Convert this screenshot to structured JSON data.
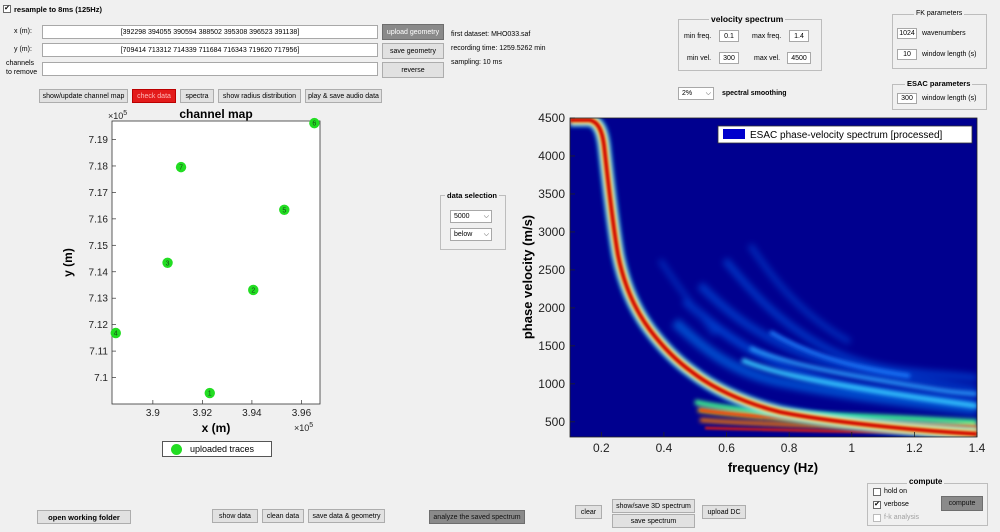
{
  "resample": {
    "label": "resample to 8ms (125Hz)",
    "checked": true
  },
  "geometry": {
    "x_label": "x (m):",
    "x_value": "[392298  394055  390594  388502  395308  396523  391138]",
    "y_label": "y (m):",
    "y_value": "[709414  713312  714339  711684  716343  719620  717956]",
    "channels_label_1": "channels",
    "channels_label_2": "to remove",
    "channels_value": ""
  },
  "geometry_buttons": {
    "upload": "upload geometry",
    "save": "save geometry",
    "reverse": "reverse"
  },
  "dataset_info": {
    "first_dataset": "first dataset: MHO033.saf",
    "recording_time": "recording time: 1259.5262 min",
    "sampling": "sampling: 10 ms"
  },
  "toolbar": {
    "show_map": "show/update channel map",
    "check_data": "check data",
    "spectra": "spectra",
    "radius": "show radius distribution",
    "audio": "play & save audio data"
  },
  "velocity_spectrum": {
    "title": "velocity spectrum",
    "min_freq_label": "min freq.",
    "min_freq": "0.1",
    "max_freq_label": "max freq.",
    "max_freq": "1.4",
    "min_vel_label": "min vel.",
    "min_vel": "300",
    "max_vel_label": "max vel.",
    "max_vel": "4500"
  },
  "smoothing": {
    "value": "2%",
    "label": "spectral smoothing"
  },
  "fk_parameters": {
    "title": "FK parameters",
    "wavenumbers": "1024",
    "wavenumbers_label": "wavenumbers",
    "window_length": "10",
    "window_length_label": "window length (s)"
  },
  "esac_parameters": {
    "title": "ESAC parameters",
    "window_length": "300",
    "window_length_label": "window length (s)"
  },
  "data_selection": {
    "title": "data selection",
    "value": "5000",
    "mode": "below"
  },
  "bottom_buttons": {
    "open_folder": "open working folder",
    "show_data": "show data",
    "clean_data": "clean data",
    "save_data_geometry": "save data & geometry",
    "analyze_saved": "analyze the saved spectrum",
    "clear": "clear",
    "show_save_3d": "show/save 3D spectrum",
    "save_spectrum": "save spectrum",
    "upload_dc": "upload DC"
  },
  "compute_panel": {
    "title": "compute",
    "hold_on": "hold on",
    "hold_on_checked": false,
    "verbose": "verbose",
    "verbose_checked": true,
    "fk_analysis": "f-k analysis",
    "fk_analysis_checked": false,
    "compute_button": "compute"
  },
  "channel_map": {
    "title": "channel map",
    "xlabel": "x (m)",
    "ylabel": "y (m)",
    "x_exponent_base": "×10",
    "x_exponent_power": "5",
    "y_exponent_base": "×10",
    "y_exponent_power": "5",
    "x_ticks": [
      "3.9",
      "3.92",
      "3.94",
      "3.96"
    ],
    "y_ticks": [
      "7.1",
      "7.11",
      "7.12",
      "7.13",
      "7.14",
      "7.15",
      "7.16",
      "7.17",
      "7.18",
      "7.19"
    ],
    "legend": "uploaded traces",
    "marker_color": "#22dd22"
  },
  "chart_data": [
    {
      "type": "scatter",
      "title": "channel map",
      "xlabel": "x (m)",
      "ylabel": "y (m)",
      "xlim": [
        388350,
        396750
      ],
      "ylim": [
        709000,
        719700
      ],
      "points": [
        {
          "label": "1",
          "x": 392298,
          "y": 709414
        },
        {
          "label": "2",
          "x": 394055,
          "y": 713312
        },
        {
          "label": "3",
          "x": 390594,
          "y": 714339
        },
        {
          "label": "4",
          "x": 388502,
          "y": 711684
        },
        {
          "label": "5",
          "x": 395308,
          "y": 716343
        },
        {
          "label": "6",
          "x": 396523,
          "y": 719620
        },
        {
          "label": "7",
          "x": 391138,
          "y": 717956
        }
      ],
      "legend": [
        "uploaded traces"
      ],
      "legend_position": "bottom-center"
    },
    {
      "type": "heatmap",
      "title": "",
      "xlabel": "frequency (Hz)",
      "ylabel": "phase velocity (m/s)",
      "xlim": [
        0.1,
        1.4
      ],
      "ylim": [
        300,
        4500
      ],
      "x_ticks": [
        "0.2",
        "0.4",
        "0.6",
        "0.8",
        "1",
        "1.2",
        "1.4"
      ],
      "y_ticks": [
        "500",
        "1000",
        "1500",
        "2000",
        "2500",
        "3000",
        "3500",
        "4000",
        "4500"
      ],
      "legend": [
        "ESAC phase-velocity spectrum [processed]"
      ],
      "legend_position": "top-right",
      "colormap": "jet",
      "fundamental_mode_ridge": [
        {
          "x": 0.1,
          "y": 4480
        },
        {
          "x": 0.15,
          "y": 4420
        },
        {
          "x": 0.18,
          "y": 4200
        },
        {
          "x": 0.2,
          "y": 3900
        },
        {
          "x": 0.22,
          "y": 3500
        },
        {
          "x": 0.25,
          "y": 3000
        },
        {
          "x": 0.28,
          "y": 2500
        },
        {
          "x": 0.32,
          "y": 2000
        },
        {
          "x": 0.38,
          "y": 1650
        },
        {
          "x": 0.45,
          "y": 1400
        },
        {
          "x": 0.5,
          "y": 1150
        },
        {
          "x": 0.55,
          "y": 950
        },
        {
          "x": 0.6,
          "y": 780
        },
        {
          "x": 0.7,
          "y": 620
        },
        {
          "x": 0.8,
          "y": 520
        },
        {
          "x": 1.0,
          "y": 430
        },
        {
          "x": 1.2,
          "y": 390
        },
        {
          "x": 1.4,
          "y": 370
        }
      ],
      "higher_modes": [
        [
          {
            "x": 0.5,
            "y": 650
          },
          {
            "x": 0.6,
            "y": 520
          },
          {
            "x": 0.8,
            "y": 460
          },
          {
            "x": 1.0,
            "y": 420
          },
          {
            "x": 1.4,
            "y": 390
          }
        ],
        [
          {
            "x": 0.5,
            "y": 530
          },
          {
            "x": 0.7,
            "y": 450
          },
          {
            "x": 1.0,
            "y": 400
          },
          {
            "x": 1.4,
            "y": 360
          }
        ]
      ]
    }
  ]
}
